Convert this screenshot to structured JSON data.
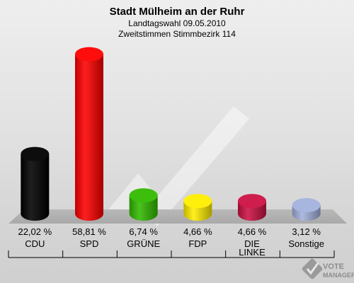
{
  "header": {
    "title": "Stadt Mülheim an der Ruhr",
    "subtitle1": "Landtagswahl 09.05.2010",
    "subtitle2": "Zweitstimmen Stimmbezirk 114"
  },
  "chart_data": {
    "type": "bar",
    "title": "Stadt Mülheim an der Ruhr",
    "subtitle": "Landtagswahl 09.05.2010 / Zweitstimmen Stimmbezirk 114",
    "categories": [
      "CDU",
      "SPD",
      "GRÜNE",
      "FDP",
      "DIE LINKE",
      "Sonstige"
    ],
    "category_lines": [
      [
        "CDU"
      ],
      [
        "SPD"
      ],
      [
        "GRÜNE"
      ],
      [
        "FDP"
      ],
      [
        "DIE",
        "LINKE"
      ],
      [
        "Sonstige"
      ]
    ],
    "values": [
      22.02,
      58.81,
      6.74,
      4.66,
      4.66,
      3.12
    ],
    "value_labels": [
      "22,02 %",
      "58,81 %",
      "6,74 %",
      "4,66 %",
      "4,66 %",
      "3,12 %"
    ],
    "colors": [
      "#000000",
      "#ff0000",
      "#33bb00",
      "#ffee00",
      "#cc1144",
      "#a3b1dd"
    ],
    "xlabel": "",
    "ylabel": "",
    "ylim": [
      0,
      60
    ],
    "grid": false,
    "legend": "none"
  },
  "watermark": {
    "line1": "VOTE",
    "line2": "MANAGER",
    "icon": "vote-manager-check-icon"
  }
}
